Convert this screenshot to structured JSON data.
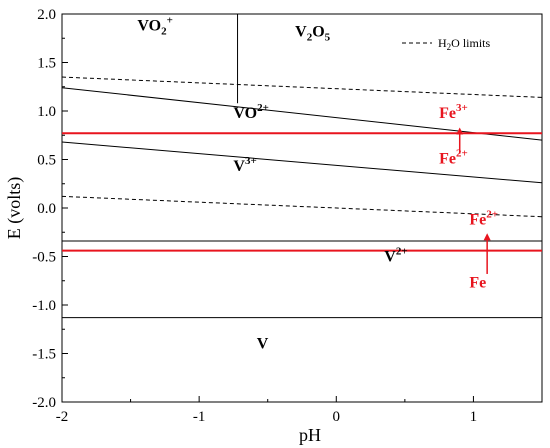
{
  "chart_data": {
    "type": "line",
    "xlabel": "pH",
    "ylabel": "E (volts)",
    "xlim": [
      -2,
      1.5
    ],
    "ylim": [
      -2.0,
      2.0
    ],
    "xticks": [
      "-2",
      "-1",
      "0",
      "1"
    ],
    "yticks": [
      "-2.0",
      "-1.5",
      "-1.0",
      "-0.5",
      "0.0",
      "0.5",
      "1.0",
      "1.5",
      "2.0"
    ],
    "grid": false,
    "legend": {
      "position": "top-right",
      "label_main": "H",
      "label_sub": "2",
      "label_rest": "O limits"
    },
    "series": [
      {
        "kind": "boundary",
        "x": [
          -2,
          1.5
        ],
        "y": [
          1.24,
          0.7
        ]
      },
      {
        "kind": "boundary",
        "x": [
          -2,
          1.5
        ],
        "y": [
          0.68,
          0.26
        ]
      },
      {
        "kind": "boundary",
        "x": [
          -0.72,
          -0.72
        ],
        "y": [
          2.0,
          1.08
        ]
      },
      {
        "kind": "boundary",
        "x": [
          -2,
          1.5
        ],
        "y": [
          -0.34,
          -0.34
        ]
      },
      {
        "kind": "boundary",
        "x": [
          -2,
          1.5
        ],
        "y": [
          -1.13,
          -1.13
        ]
      },
      {
        "kind": "water",
        "x": [
          -2,
          1.5
        ],
        "y": [
          1.35,
          1.14
        ]
      },
      {
        "kind": "water",
        "x": [
          -2,
          1.5
        ],
        "y": [
          0.12,
          -0.09
        ]
      },
      {
        "kind": "iron",
        "x": [
          -2,
          1.5
        ],
        "y": [
          0.77,
          0.77
        ]
      },
      {
        "kind": "iron",
        "x": [
          -2,
          1.5
        ],
        "y": [
          -0.44,
          -0.44
        ]
      }
    ],
    "arrows": [
      {
        "x": 0.9,
        "y_from": 0.56,
        "y_to": 0.83
      },
      {
        "x": 1.1,
        "y_from": -0.68,
        "y_to": -0.26
      }
    ],
    "regions": [
      {
        "main": "VO",
        "sub": "2",
        "sup": "+",
        "x": -1.45,
        "y": 1.83
      },
      {
        "main": "V",
        "sub": "2",
        "rest": "O",
        "sub2": "5",
        "x": -0.3,
        "y": 1.77
      },
      {
        "main": "VO",
        "sup": "2+",
        "x": -0.75,
        "y": 0.93
      },
      {
        "main": "V",
        "sup": "3+",
        "x": -0.75,
        "y": 0.38
      },
      {
        "main": "V",
        "sup": "2+",
        "x": 0.35,
        "y": -0.55
      },
      {
        "main": "V",
        "x": -0.58,
        "y": -1.45
      }
    ],
    "iron_labels": [
      {
        "main": "Fe",
        "sup": "3+",
        "x": 0.75,
        "y": 0.93
      },
      {
        "main": "Fe",
        "sup": "2+",
        "x": 0.75,
        "y": 0.46
      },
      {
        "main": "Fe",
        "sup": "2+",
        "x": 0.97,
        "y": -0.17
      },
      {
        "main": "Fe",
        "x": 0.97,
        "y": -0.82
      }
    ],
    "colors": {
      "boundary": "#000000",
      "water": "#000000",
      "iron": "#e8141e"
    }
  }
}
